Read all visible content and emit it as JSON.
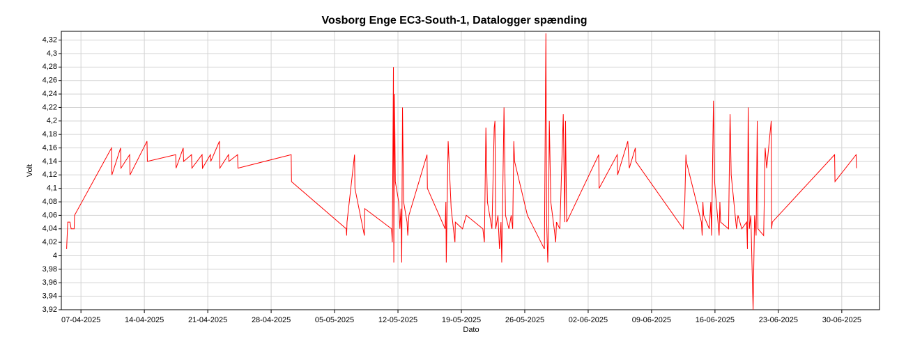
{
  "chart_data": {
    "type": "line",
    "title": "Vosborg Enge EC3-South-1, Datalogger spænding",
    "x_label": "Dato",
    "y_label": "Volt",
    "color": "#ff0000",
    "grid": true,
    "xlim": [
      "2025-04-04T20:00",
      "2025-07-04T04:00"
    ],
    "ylim": [
      3.92,
      4.333
    ],
    "xticks": [
      {
        "value": "2025-04-07",
        "label": "07-04-2025"
      },
      {
        "value": "2025-04-14",
        "label": "14-04-2025"
      },
      {
        "value": "2025-04-21",
        "label": "21-04-2025"
      },
      {
        "value": "2025-04-28",
        "label": "28-04-2025"
      },
      {
        "value": "2025-05-05",
        "label": "05-05-2025"
      },
      {
        "value": "2025-05-12",
        "label": "12-05-2025"
      },
      {
        "value": "2025-05-19",
        "label": "19-05-2025"
      },
      {
        "value": "2025-05-26",
        "label": "26-05-2025"
      },
      {
        "value": "2025-06-02",
        "label": "02-06-2025"
      },
      {
        "value": "2025-06-09",
        "label": "09-06-2025"
      },
      {
        "value": "2025-06-16",
        "label": "16-06-2025"
      },
      {
        "value": "2025-06-23",
        "label": "23-06-2025"
      },
      {
        "value": "2025-06-30",
        "label": "30-06-2025"
      }
    ],
    "yticks": [
      {
        "value": 3.92,
        "label": "3,92"
      },
      {
        "value": 3.94,
        "label": "3,94"
      },
      {
        "value": 3.96,
        "label": "3,96"
      },
      {
        "value": 3.98,
        "label": "3,98"
      },
      4,
      {
        "value": 4.02,
        "label": "4,02"
      },
      {
        "value": 4.04,
        "label": "4,04"
      },
      {
        "value": 4.06,
        "label": "4,06"
      },
      {
        "value": 4.08,
        "label": "4,08"
      },
      {
        "value": 4.1,
        "label": "4,1"
      },
      {
        "value": 4.12,
        "label": "4,12"
      },
      {
        "value": 4.14,
        "label": "4,14"
      },
      {
        "value": 4.16,
        "label": "4,16"
      },
      {
        "value": 4.18,
        "label": "4,18"
      },
      {
        "value": 4.2,
        "label": "4,2"
      },
      {
        "value": 4.22,
        "label": "4,22"
      },
      {
        "value": 4.24,
        "label": "4,24"
      },
      {
        "value": 4.26,
        "label": "4,26"
      },
      {
        "value": 4.28,
        "label": "4,28"
      },
      {
        "value": 4.3,
        "label": "4,3"
      },
      {
        "value": 4.32,
        "label": "4,32"
      }
    ],
    "x": [
      "2025-04-05T10:00",
      "2025-04-05T13:00",
      "2025-04-05T19:00",
      "2025-04-05T22:00",
      "2025-04-06T06:00",
      "2025-04-06T07:00",
      "2025-04-10T09:00",
      "2025-04-10T10:00",
      "2025-04-11T09:00",
      "2025-04-11T10:00",
      "2025-04-12T09:00",
      "2025-04-12T10:00",
      "2025-04-14T07:00",
      "2025-04-14T08:00",
      "2025-04-17T11:00",
      "2025-04-17T12:00",
      "2025-04-18T07:00",
      "2025-04-18T08:00",
      "2025-04-19T05:00",
      "2025-04-19T06:00",
      "2025-04-20T09:00",
      "2025-04-20T10:00",
      "2025-04-21T07:00",
      "2025-04-21T08:00",
      "2025-04-22T07:00",
      "2025-04-22T08:00",
      "2025-04-23T07:00",
      "2025-04-23T08:00",
      "2025-04-24T07:00",
      "2025-04-24T08:00",
      "2025-04-30T05:00",
      "2025-04-30T06:00",
      "2025-05-06T07:00",
      "2025-05-06T08:00",
      "2025-05-06T09:00",
      "2025-05-07T05:00",
      "2025-05-07T06:00",
      "2025-05-08T07:00",
      "2025-05-08T08:00",
      "2025-05-11T07:00",
      "2025-05-11T09:00",
      "2025-05-11T12:00",
      "2025-05-11T13:00",
      "2025-05-11T15:00",
      "2025-05-11T17:00",
      "2025-05-12T02:00",
      "2025-05-12T05:00",
      "2025-05-12T08:00",
      "2025-05-12T10:00",
      "2025-05-12T12:00",
      "2025-05-12T15:00",
      "2025-05-13T00:00",
      "2025-05-13T02:00",
      "2025-05-13T05:00",
      "2025-05-15T05:00",
      "2025-05-15T06:00",
      "2025-05-17T05:00",
      "2025-05-17T07:00",
      "2025-05-17T08:00",
      "2025-05-17T13:00",
      "2025-05-17T21:00",
      "2025-05-18T07:00",
      "2025-05-18T08:00",
      "2025-05-19T03:00",
      "2025-05-19T13:00",
      "2025-05-21T09:00",
      "2025-05-21T13:00",
      "2025-05-21T17:00",
      "2025-05-21T21:00",
      "2025-05-22T09:00",
      "2025-05-22T15:00",
      "2025-05-22T17:00",
      "2025-05-22T19:00",
      "2025-05-23T01:00",
      "2025-05-23T05:00",
      "2025-05-23T09:00",
      "2025-05-23T11:00",
      "2025-05-23T17:00",
      "2025-05-23T21:00",
      "2025-05-24T06:00",
      "2025-05-24T12:00",
      "2025-05-24T16:00",
      "2025-05-24T19:00",
      "2025-05-24T21:00",
      "2025-05-26T07:00",
      "2025-05-28T04:00",
      "2025-05-28T08:00",
      "2025-05-28T10:00",
      "2025-05-28T13:00",
      "2025-05-28T15:00",
      "2025-05-28T17:00",
      "2025-05-28T21:00",
      "2025-05-29T06:00",
      "2025-05-29T10:00",
      "2025-05-29T12:00",
      "2025-05-29T21:00",
      "2025-05-30T06:00",
      "2025-05-30T10:00",
      "2025-05-30T12:00",
      "2025-05-30T15:00",
      "2025-06-03T04:00",
      "2025-06-03T05:00",
      "2025-06-05T05:00",
      "2025-06-05T06:00",
      "2025-06-06T09:00",
      "2025-06-06T13:00",
      "2025-06-07T05:00",
      "2025-06-07T06:00",
      "2025-06-12T12:00",
      "2025-06-12T16:00",
      "2025-06-12T19:00",
      "2025-06-12T20:00",
      "2025-06-14T12:00",
      "2025-06-14T14:00",
      "2025-06-14T16:00",
      "2025-06-14T18:00",
      "2025-06-15T09:00",
      "2025-06-15T13:00",
      "2025-06-15T15:00",
      "2025-06-15T20:00",
      "2025-06-15T23:00",
      "2025-06-16T11:00",
      "2025-06-16T13:00",
      "2025-06-16T15:00",
      "2025-06-17T12:00",
      "2025-06-17T16:00",
      "2025-06-17T19:00",
      "2025-06-18T09:00",
      "2025-06-18T13:00",
      "2025-06-18T23:00",
      "2025-06-19T12:00",
      "2025-06-19T14:00",
      "2025-06-19T16:00",
      "2025-06-19T19:00",
      "2025-06-19T23:00",
      "2025-06-20T05:00",
      "2025-06-20T09:00",
      "2025-06-20T13:00",
      "2025-06-20T16:00",
      "2025-06-20T18:00",
      "2025-06-21T09:00",
      "2025-06-21T13:00",
      "2025-06-21T17:00",
      "2025-06-22T05:00",
      "2025-06-22T06:00",
      "2025-06-22T08:00",
      "2025-06-29T05:00",
      "2025-06-29T06:00",
      "2025-07-01T14:00",
      "2025-07-01T15:00"
    ],
    "values": [
      4.01,
      4.05,
      4.05,
      4.04,
      4.04,
      4.06,
      4.16,
      4.12,
      4.16,
      4.13,
      4.15,
      4.12,
      4.17,
      4.14,
      4.15,
      4.13,
      4.16,
      4.14,
      4.15,
      4.13,
      4.15,
      4.13,
      4.15,
      4.14,
      4.17,
      4.13,
      4.15,
      4.14,
      4.15,
      4.13,
      4.15,
      4.11,
      4.04,
      4.03,
      4.05,
      4.15,
      4.1,
      4.03,
      4.07,
      4.04,
      4.02,
      4.28,
      3.99,
      4.24,
      4.11,
      4.08,
      4.04,
      4.07,
      3.99,
      4.22,
      4.08,
      4.05,
      4.03,
      4.06,
      4.15,
      4.1,
      4.04,
      4.08,
      3.99,
      4.17,
      4.07,
      4.02,
      4.05,
      4.04,
      4.06,
      4.04,
      4.02,
      4.19,
      4.08,
      4.04,
      4.19,
      4.2,
      4.04,
      4.06,
      4.01,
      4.05,
      3.99,
      4.22,
      4.06,
      4.04,
      4.06,
      4.04,
      4.17,
      4.14,
      4.06,
      4.01,
      4.33,
      4.05,
      3.99,
      4.05,
      4.2,
      4.08,
      4.04,
      4.02,
      4.05,
      4.04,
      4.21,
      4.05,
      4.2,
      4.05,
      4.15,
      4.1,
      4.15,
      4.12,
      4.17,
      4.13,
      4.16,
      4.14,
      4.04,
      4.08,
      4.15,
      4.14,
      4.05,
      4.03,
      4.08,
      4.06,
      4.04,
      4.08,
      4.03,
      4.23,
      4.11,
      4.03,
      4.08,
      4.05,
      4.04,
      4.21,
      4.12,
      4.04,
      4.06,
      4.04,
      4.05,
      4.01,
      4.22,
      4.04,
      4.06,
      3.92,
      4.06,
      4.03,
      4.2,
      4.04,
      4.03,
      4.16,
      4.13,
      4.2,
      4.04,
      4.05,
      4.15,
      4.11,
      4.15,
      4.13
    ]
  }
}
